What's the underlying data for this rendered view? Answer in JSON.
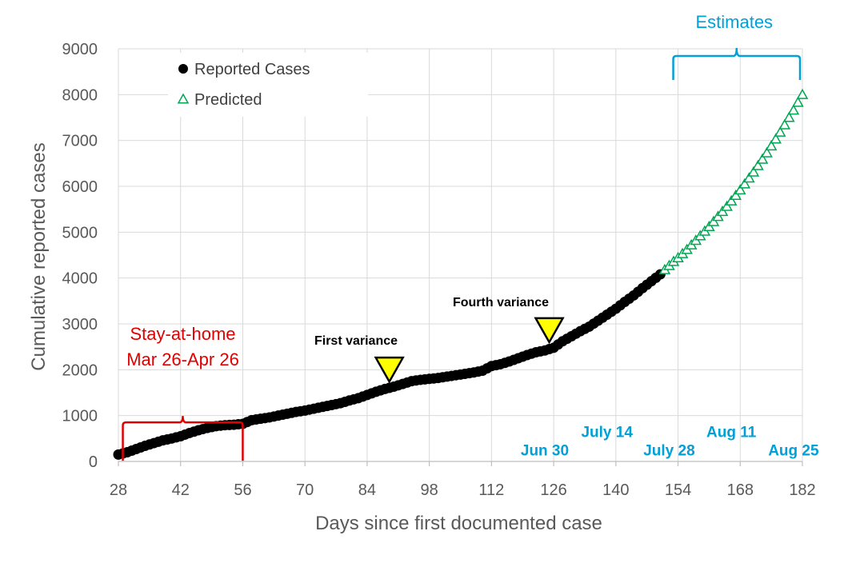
{
  "chart_data": {
    "type": "scatter",
    "xlabel": "Days since first documented case",
    "ylabel": "Cumulative reported cases",
    "xlim": [
      28,
      182
    ],
    "ylim": [
      0,
      9000
    ],
    "x_ticks": [
      28,
      42,
      56,
      70,
      84,
      98,
      112,
      126,
      140,
      154,
      168,
      182
    ],
    "y_ticks": [
      0,
      1000,
      2000,
      3000,
      4000,
      5000,
      6000,
      7000,
      8000,
      9000
    ],
    "grid": "vertical and horizontal",
    "legend_position": "top-left",
    "series": [
      {
        "name": "Reported Cases",
        "marker": "filled-circle",
        "color": "#000000",
        "points": [
          [
            28,
            150
          ],
          [
            30,
            200
          ],
          [
            32,
            270
          ],
          [
            34,
            340
          ],
          [
            36,
            400
          ],
          [
            38,
            460
          ],
          [
            40,
            500
          ],
          [
            42,
            550
          ],
          [
            44,
            620
          ],
          [
            46,
            680
          ],
          [
            48,
            730
          ],
          [
            50,
            770
          ],
          [
            52,
            790
          ],
          [
            54,
            800
          ],
          [
            56,
            820
          ],
          [
            58,
            900
          ],
          [
            60,
            930
          ],
          [
            62,
            960
          ],
          [
            64,
            1000
          ],
          [
            66,
            1040
          ],
          [
            68,
            1080
          ],
          [
            70,
            1110
          ],
          [
            72,
            1150
          ],
          [
            74,
            1190
          ],
          [
            76,
            1230
          ],
          [
            78,
            1270
          ],
          [
            80,
            1330
          ],
          [
            82,
            1380
          ],
          [
            84,
            1450
          ],
          [
            86,
            1520
          ],
          [
            88,
            1580
          ],
          [
            90,
            1630
          ],
          [
            92,
            1690
          ],
          [
            94,
            1750
          ],
          [
            96,
            1780
          ],
          [
            98,
            1800
          ],
          [
            100,
            1820
          ],
          [
            102,
            1850
          ],
          [
            104,
            1880
          ],
          [
            106,
            1910
          ],
          [
            108,
            1940
          ],
          [
            110,
            1980
          ],
          [
            112,
            2080
          ],
          [
            114,
            2120
          ],
          [
            116,
            2180
          ],
          [
            118,
            2250
          ],
          [
            120,
            2320
          ],
          [
            122,
            2380
          ],
          [
            124,
            2420
          ],
          [
            126,
            2480
          ],
          [
            128,
            2620
          ],
          [
            130,
            2730
          ],
          [
            132,
            2840
          ],
          [
            134,
            2940
          ],
          [
            136,
            3070
          ],
          [
            138,
            3200
          ],
          [
            140,
            3330
          ],
          [
            142,
            3480
          ],
          [
            144,
            3620
          ],
          [
            146,
            3780
          ],
          [
            148,
            3930
          ],
          [
            150,
            4080
          ]
        ]
      },
      {
        "name": "Predicted",
        "marker": "open-triangle",
        "color": "#00A651",
        "points": [
          [
            151,
            4180
          ],
          [
            152,
            4270
          ],
          [
            153,
            4360
          ],
          [
            154,
            4440
          ],
          [
            155,
            4530
          ],
          [
            156,
            4620
          ],
          [
            157,
            4720
          ],
          [
            158,
            4820
          ],
          [
            159,
            4920
          ],
          [
            160,
            5020
          ],
          [
            161,
            5120
          ],
          [
            162,
            5230
          ],
          [
            163,
            5340
          ],
          [
            164,
            5450
          ],
          [
            165,
            5560
          ],
          [
            166,
            5680
          ],
          [
            167,
            5800
          ],
          [
            168,
            5920
          ],
          [
            169,
            6050
          ],
          [
            170,
            6180
          ],
          [
            171,
            6310
          ],
          [
            172,
            6450
          ],
          [
            173,
            6590
          ],
          [
            174,
            6730
          ],
          [
            175,
            6880
          ],
          [
            176,
            7030
          ],
          [
            177,
            7180
          ],
          [
            178,
            7340
          ],
          [
            179,
            7500
          ],
          [
            180,
            7660
          ],
          [
            181,
            7830
          ],
          [
            182,
            8000
          ]
        ]
      }
    ],
    "annotations": {
      "stay_at_home": {
        "line1": "Stay-at-home",
        "line2": "Mar 26-Apr 26",
        "color": "#E00000",
        "x_start": 29,
        "x_end": 56,
        "y": 400
      },
      "estimates": {
        "label": "Estimates",
        "color": "#00A0D8",
        "x_start": 154,
        "x_end": 182,
        "y": 8500
      },
      "first_variance": {
        "label": "First variance",
        "x": 89,
        "y": 2020
      },
      "fourth_variance": {
        "label": "Fourth variance",
        "x": 125,
        "y": 2880
      },
      "dates": [
        {
          "label": "Jun 30",
          "x": 124,
          "y": 250
        },
        {
          "label": "July 14",
          "x": 138,
          "y": 650
        },
        {
          "label": "July 28",
          "x": 152,
          "y": 250
        },
        {
          "label": "Aug 11",
          "x": 166,
          "y": 650
        },
        {
          "label": "Aug 25",
          "x": 180,
          "y": 250
        }
      ],
      "date_color": "#00A0D8",
      "variance_fill": "#FFFF00"
    }
  }
}
